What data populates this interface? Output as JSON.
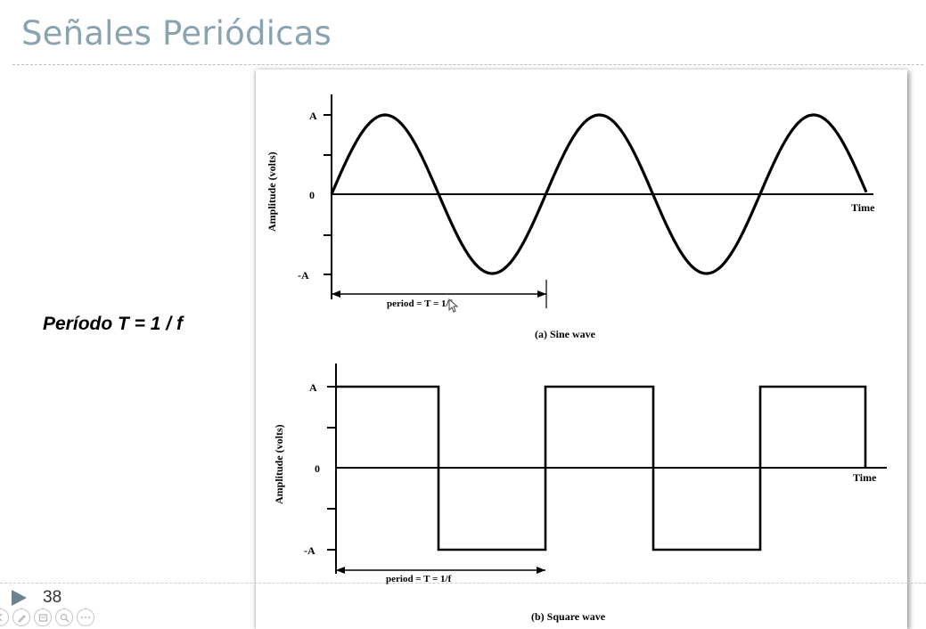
{
  "slide": {
    "title": "Señales Periódicas",
    "period_text": "Período T = 1 / f",
    "number": "38"
  },
  "toolbar": {
    "buttons": [
      {
        "icon": "back-icon"
      },
      {
        "icon": "pen-icon"
      },
      {
        "icon": "slides-icon"
      },
      {
        "icon": "zoom-icon"
      },
      {
        "icon": "more-icon"
      }
    ]
  },
  "figure": {
    "sine": {
      "ylabel": "Amplitude (volts)",
      "tick_top": "A",
      "tick_zero": "0",
      "tick_bottom": "-A",
      "xlabel": "Time",
      "period_label": "period = T = 1/f",
      "caption": "(a) Sine wave"
    },
    "square": {
      "ylabel": "Amplitude (volts)",
      "tick_top": "A",
      "tick_zero": "0",
      "tick_bottom": "-A",
      "xlabel": "Time",
      "period_label": "period = T = 1/f",
      "caption": "(b) Square wave"
    }
  },
  "colors": {
    "title": "#8aa3b0",
    "arrow": "#6b8290"
  }
}
